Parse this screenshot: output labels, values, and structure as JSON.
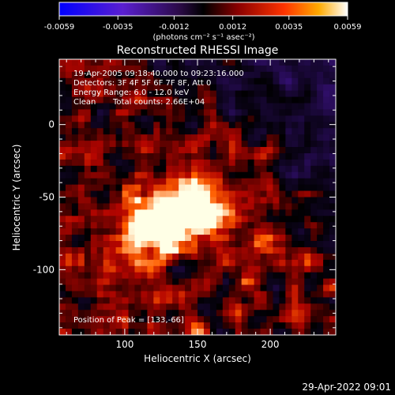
{
  "colorbar": {
    "ticks": [
      "-0.0059",
      "-0.0035",
      "-0.0012",
      "0.0012",
      "0.0035",
      "0.0059"
    ],
    "units": "(photons cm⁻² s⁻¹ asec⁻²)",
    "range": [
      -0.0059,
      0.0059
    ]
  },
  "chart_data": {
    "type": "heatmap",
    "title": "Reconstructed RHESSI Image",
    "xlabel": "Heliocentric X (arcsec)",
    "ylabel": "Heliocentric Y (arcsec)",
    "xlim": [
      55,
      245
    ],
    "ylim": [
      -145,
      45
    ],
    "xticks": [
      100,
      150,
      200
    ],
    "yticks": [
      0,
      -50,
      -100
    ],
    "peak": {
      "x": 133,
      "y": -66,
      "value": 0.0059
    },
    "annotations": {
      "time": "19-Apr-2005 09:18:40.000 to 09:23:16.000",
      "detectors": "Detectors: 3F 4F 5F 6F 7F 8F, Att 0",
      "energy": "Energy Range: 6.0 - 12.0 keV",
      "clean": "Clean",
      "counts": "Total counts: 2.66E+04",
      "peak_label": "Position of Peak = [133,-66]"
    }
  },
  "footer": {
    "date": "29-Apr-2022 09:01"
  }
}
